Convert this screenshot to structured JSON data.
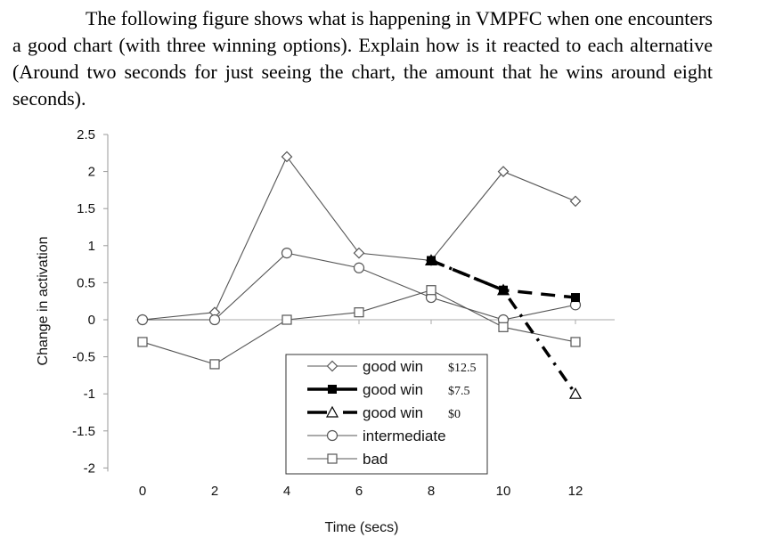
{
  "question": {
    "paragraph": "The following figure shows what is happening in VMPFC when one encounters a good chart (with three winning options). Explain how is it reacted to each alternative (Around two seconds for just seeing the chart, the amount that he wins around eight seconds)."
  },
  "chart_data": {
    "type": "line",
    "xlabel": "Time (secs)",
    "ylabel": "Change in activation",
    "x_ticks": [
      0,
      2,
      4,
      6,
      8,
      10,
      12
    ],
    "x_tick_labels": [
      "0",
      "2",
      "4",
      "6",
      "8",
      "10",
      "12"
    ],
    "y_ticks": [
      2.5,
      2,
      1.5,
      1,
      0.5,
      0,
      -0.5,
      -1,
      -1.5,
      -2
    ],
    "y_tick_labels": [
      "2.5",
      "2",
      "1.5",
      "1",
      "0.5",
      "0",
      "-0.5",
      "-1",
      "-1.5",
      "-2"
    ],
    "xlim": [
      0,
      12
    ],
    "ylim": [
      -2,
      2.5
    ],
    "legend_position": "lower-center",
    "series": [
      {
        "name": "good win",
        "amount": "$12.5",
        "marker": "diamond",
        "style": "solid-thin",
        "color": "#555555",
        "x": [
          0,
          2,
          4,
          6,
          8,
          10,
          12
        ],
        "y": [
          0,
          0.1,
          2.2,
          0.9,
          0.8,
          2.0,
          1.6
        ]
      },
      {
        "name": "good win",
        "amount": "$7.5",
        "marker": "filled-square",
        "style": "dashed-thick",
        "color": "#000000",
        "x": [
          8,
          10,
          12
        ],
        "y": [
          0.8,
          0.4,
          0.3
        ]
      },
      {
        "name": "good win",
        "amount": "$0",
        "marker": "triangle",
        "style": "dashdot-thick",
        "color": "#000000",
        "x": [
          8,
          10,
          12
        ],
        "y": [
          0.8,
          0.4,
          -1.0
        ]
      },
      {
        "name": "intermediate",
        "amount": "",
        "marker": "circle",
        "style": "solid-thin",
        "color": "#555555",
        "x": [
          0,
          2,
          4,
          6,
          8,
          10,
          12
        ],
        "y": [
          0,
          0,
          0.9,
          0.7,
          0.3,
          0,
          0.2
        ]
      },
      {
        "name": "bad",
        "amount": "",
        "marker": "square",
        "style": "solid-thin",
        "color": "#555555",
        "x": [
          0,
          2,
          4,
          6,
          8,
          10,
          12
        ],
        "y": [
          -0.3,
          -0.6,
          0,
          0.1,
          0.4,
          -0.1,
          -0.3
        ]
      }
    ]
  }
}
